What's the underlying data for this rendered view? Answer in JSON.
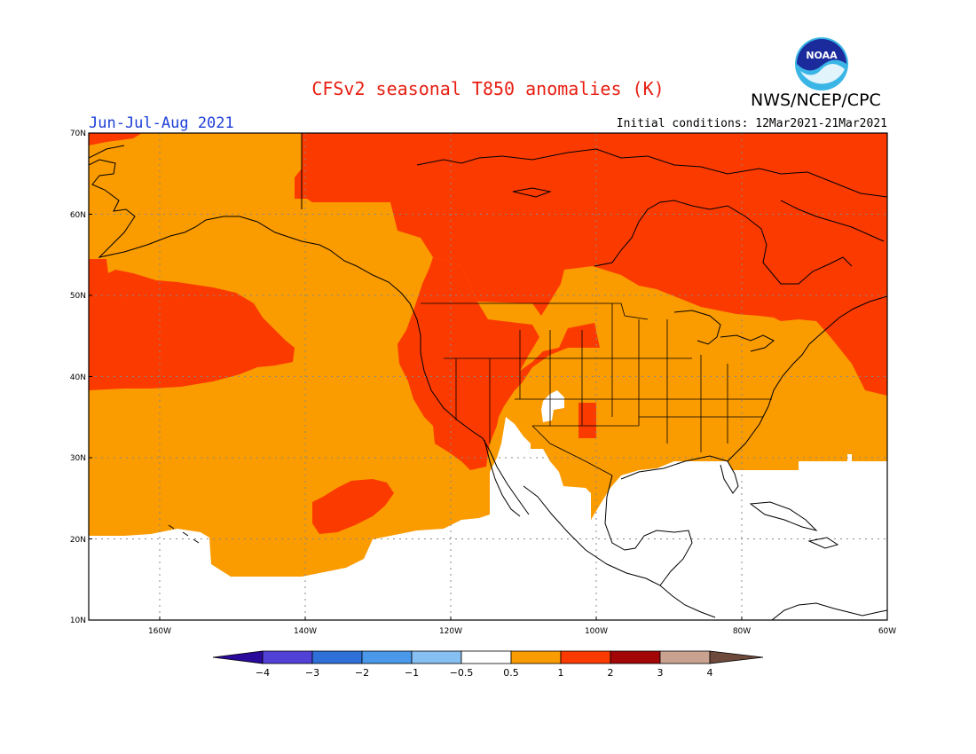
{
  "title": "CFSv2 seasonal T850 anomalies (K)",
  "agency": "NWS/NCEP/CPC",
  "logo_text": "NOAA",
  "season": "Jun-Jul-Aug 2021",
  "initial_conditions": "Initial conditions: 12Mar2021-21Mar2021",
  "map": {
    "lon_range": [
      -172,
      -60
    ],
    "lat_range": [
      10,
      70
    ],
    "lat_labels": [
      "70N",
      "60N",
      "50N",
      "40N",
      "30N",
      "20N",
      "10N"
    ],
    "lon_labels": [
      "160W",
      "140W",
      "120W",
      "100W",
      "80W",
      "60W"
    ],
    "grid": "dotted"
  },
  "colorbar": {
    "labels": [
      "-4",
      "-3",
      "-2",
      "-1",
      "-0.5",
      "0.5",
      "1",
      "2",
      "3",
      "4"
    ],
    "colors": [
      "#2a0a9a",
      "#5141d6",
      "#2f6fd8",
      "#4a98ea",
      "#86bff2",
      "#ffffff",
      "#fa9b00",
      "#fb3a00",
      "#a30606",
      "#c9a290",
      "#6e4a3c"
    ]
  },
  "anomaly_colors": {
    "0.5-1": "#fa9b00",
    "1-2": "#fb3a00",
    "below_0.5": "#ffffff"
  }
}
